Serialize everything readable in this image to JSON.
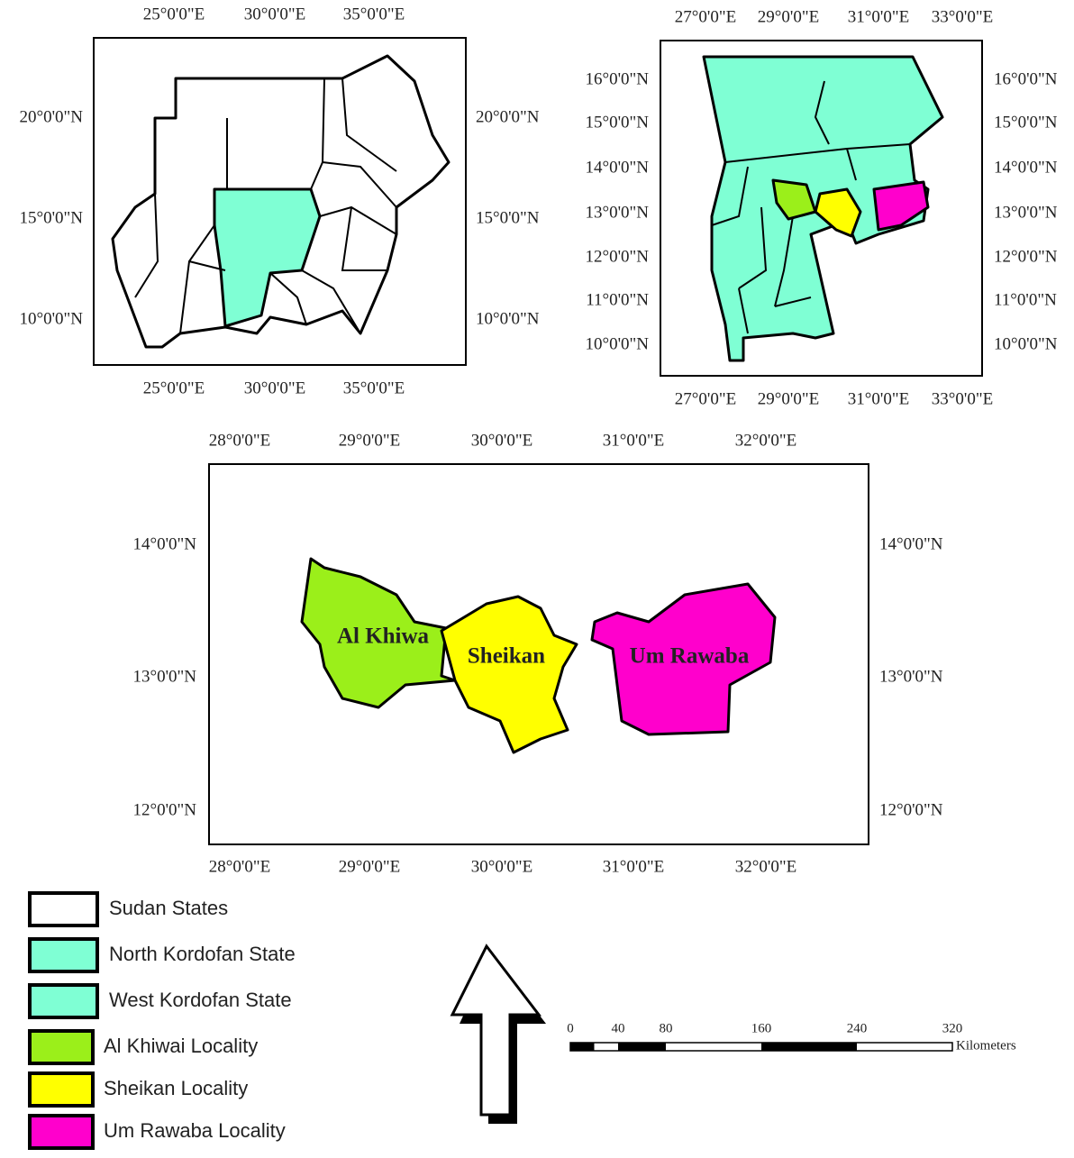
{
  "maps": [
    {
      "xticks": [
        "25°0'0\"E",
        "30°0'0\"E",
        "35°0'0\"E"
      ],
      "yticks": [
        "20°0'0\"N",
        "15°0'0\"N",
        "10°0'0\"N"
      ]
    },
    {
      "xticks": [
        "27°0'0\"E",
        "29°0'0\"E",
        "31°0'0\"E",
        "33°0'0\"E"
      ],
      "yticks": [
        "16°0'0\"N",
        "15°0'0\"N",
        "14°0'0\"N",
        "13°0'0\"N",
        "12°0'0\"N",
        "11°0'0\"N",
        "10°0'0\"N"
      ]
    },
    {
      "xticks": [
        "28°0'0\"E",
        "29°0'0\"E",
        "30°0'0\"E",
        "31°0'0\"E",
        "32°0'0\"E"
      ],
      "yticks": [
        "14°0'0\"N",
        "13°0'0\"N",
        "12°0'0\"N"
      ],
      "regions": [
        "Al Khiwa",
        "Sheikan",
        "Um Rawaba"
      ]
    }
  ],
  "legend": [
    {
      "label": "Sudan States",
      "color": "#ffffff"
    },
    {
      "label": "North Kordofan State",
      "color": "#7fffd4"
    },
    {
      "label": "West Kordofan State",
      "color": "#7fffd4"
    },
    {
      "label": "Al Khiwai Locality",
      "color": "#9bef1a"
    },
    {
      "label": "Sheikan Locality",
      "color": "#ffff00"
    },
    {
      "label": "Um Rawaba Locality",
      "color": "#ff00cc"
    }
  ],
  "scale_bar": {
    "ticks": [
      0,
      40,
      80,
      160,
      240,
      320
    ],
    "unit": "Kilometers"
  }
}
